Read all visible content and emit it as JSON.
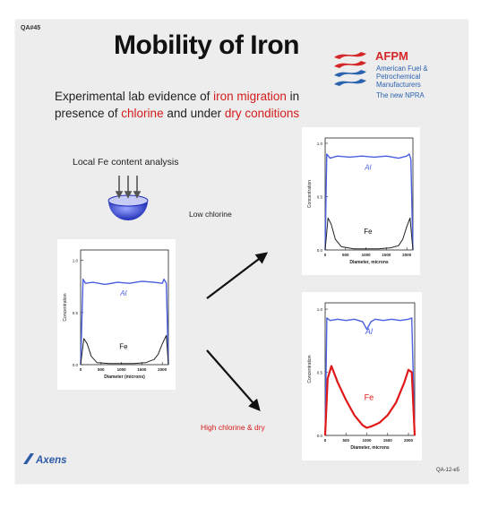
{
  "slide": {
    "qa_top": "QA#45",
    "title": "Mobility of Iron",
    "intro": {
      "p1": "Experimental lab evidence  of ",
      "p2": "iron migration",
      "p3": " in presence of ",
      "p4": "chlorine",
      "p5": " and under ",
      "p6": "dry conditions"
    },
    "local_analysis": "Local Fe content analysis",
    "low_label": "Low chlorine",
    "high_label": "High chlorine & dry",
    "axens": "Axens",
    "qa_bottom": "QA-12-e5"
  },
  "logo": {
    "name": "AFPM",
    "subtitle": "American Fuel & Petrochemical Manufacturers",
    "npra": "The new NPRA",
    "colors": {
      "red": "#d62728",
      "blue": "#2b63b0"
    }
  },
  "colors": {
    "al_line": "#4a5fe0",
    "fe_line_dark": "#222222",
    "fe_line_red": "#e01818",
    "accent_red": "#d41c1c"
  },
  "chart_data": [
    {
      "type": "line",
      "label": "initial",
      "ylabel": "Concentration",
      "xlabel": "Diameter (microns)",
      "x_ticks": [
        "0",
        "500",
        "1000",
        "1500",
        "2000"
      ],
      "y_ticks": [
        "1.0",
        "0.5",
        "0.0"
      ],
      "xlim": [
        0,
        2150
      ],
      "ylim": [
        0,
        1.1
      ],
      "series": [
        {
          "name": "Al",
          "color": "#4a5fe0",
          "width": 1.4,
          "x": [
            0,
            60,
            120,
            300,
            600,
            900,
            1200,
            1500,
            1800,
            2000,
            2040,
            2100,
            2150
          ],
          "y": [
            0.0,
            0.82,
            0.78,
            0.79,
            0.77,
            0.79,
            0.78,
            0.8,
            0.79,
            0.78,
            0.82,
            0.78,
            0.0
          ]
        },
        {
          "name": "Fe",
          "color": "#222222",
          "width": 1.0,
          "x": [
            0,
            80,
            160,
            260,
            400,
            700,
            1000,
            1300,
            1600,
            1800,
            1900,
            2000,
            2100,
            2150
          ],
          "y": [
            0.0,
            0.25,
            0.2,
            0.08,
            0.02,
            0.01,
            0.01,
            0.01,
            0.02,
            0.05,
            0.1,
            0.2,
            0.28,
            0.0
          ]
        }
      ]
    },
    {
      "type": "line",
      "label": "low-chlorine",
      "ylabel": "Concentration",
      "xlabel": "Diameter, microns",
      "x_ticks": [
        "0",
        "500",
        "1000",
        "1500",
        "2000"
      ],
      "y_ticks": [
        "1.0",
        "0.5",
        "0.0"
      ],
      "xlim": [
        0,
        2150
      ],
      "ylim": [
        0,
        1.05
      ],
      "series": [
        {
          "name": "Al",
          "color": "#4a5fe0",
          "width": 1.4,
          "x": [
            0,
            40,
            120,
            300,
            600,
            900,
            1200,
            1500,
            1800,
            2000,
            2060,
            2100,
            2150
          ],
          "y": [
            0.0,
            0.9,
            0.86,
            0.88,
            0.87,
            0.88,
            0.87,
            0.88,
            0.86,
            0.88,
            0.9,
            0.85,
            0.0
          ]
        },
        {
          "name": "Fe",
          "color": "#222222",
          "width": 1.0,
          "x": [
            0,
            70,
            150,
            250,
            400,
            700,
            1000,
            1300,
            1600,
            1800,
            1900,
            2000,
            2080,
            2150
          ],
          "y": [
            0.0,
            0.3,
            0.24,
            0.1,
            0.03,
            0.01,
            0.01,
            0.01,
            0.02,
            0.04,
            0.1,
            0.22,
            0.3,
            0.0
          ]
        }
      ]
    },
    {
      "type": "line",
      "label": "high-chlorine-dry",
      "ylabel": "Concentration",
      "xlabel": "Diameter, microns",
      "x_ticks": [
        "0",
        "500",
        "1000",
        "1500",
        "2000"
      ],
      "y_ticks": [
        "1.0",
        "0.5",
        "0.0"
      ],
      "xlim": [
        0,
        2150
      ],
      "ylim": [
        0,
        1.05
      ],
      "series": [
        {
          "name": "Al",
          "color": "#4a5fe0",
          "width": 1.4,
          "x": [
            0,
            40,
            120,
            300,
            500,
            700,
            900,
            1000,
            1100,
            1200,
            1400,
            1600,
            1800,
            2000,
            2080,
            2150
          ],
          "y": [
            0.0,
            0.93,
            0.91,
            0.92,
            0.91,
            0.92,
            0.9,
            0.84,
            0.9,
            0.92,
            0.91,
            0.92,
            0.91,
            0.92,
            0.93,
            0.0
          ]
        },
        {
          "name": "Fe",
          "color": "#e01818",
          "width": 2.2,
          "x": [
            0,
            60,
            150,
            300,
            500,
            700,
            900,
            1000,
            1100,
            1300,
            1500,
            1700,
            1900,
            2000,
            2080,
            2150
          ],
          "y": [
            0.0,
            0.45,
            0.55,
            0.42,
            0.28,
            0.16,
            0.08,
            0.06,
            0.07,
            0.1,
            0.16,
            0.26,
            0.42,
            0.52,
            0.5,
            0.0
          ]
        }
      ]
    }
  ]
}
